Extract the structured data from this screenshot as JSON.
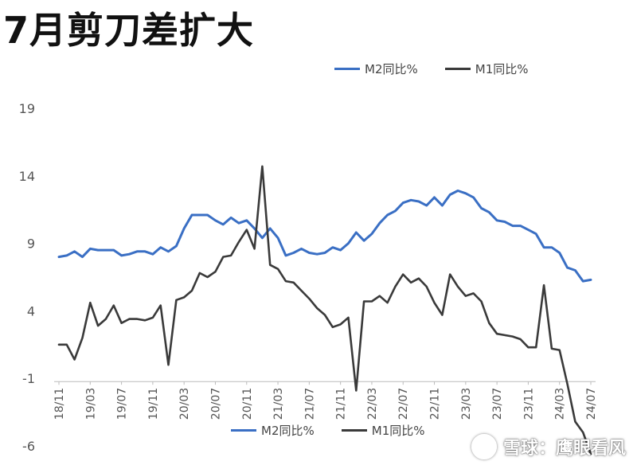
{
  "title": "7月剪刀差扩大",
  "brand_watermark": "雪球：鹰眼看风",
  "chart_data": {
    "type": "line",
    "title": "7月剪刀差扩大",
    "xlabel": "",
    "ylabel": "",
    "ylim": [
      -6,
      19
    ],
    "yticks": [
      19,
      14,
      9,
      4,
      -1,
      -6
    ],
    "xticks": [
      "18/11",
      "19/03",
      "19/07",
      "19/11",
      "20/03",
      "20/07",
      "20/11",
      "21/03",
      "21/07",
      "21/11",
      "22/03",
      "22/07",
      "22/11",
      "23/03",
      "23/07",
      "23/11",
      "24/03",
      "24/07"
    ],
    "x": [
      "18/11",
      "18/12",
      "19/01",
      "19/02",
      "19/03",
      "19/04",
      "19/05",
      "19/06",
      "19/07",
      "19/08",
      "19/09",
      "19/10",
      "19/11",
      "19/12",
      "20/01",
      "20/02",
      "20/03",
      "20/04",
      "20/05",
      "20/06",
      "20/07",
      "20/08",
      "20/09",
      "20/10",
      "20/11",
      "20/12",
      "21/01",
      "21/02",
      "21/03",
      "21/04",
      "21/05",
      "21/06",
      "21/07",
      "21/08",
      "21/09",
      "21/10",
      "21/11",
      "21/12",
      "22/01",
      "22/02",
      "22/03",
      "22/04",
      "22/05",
      "22/06",
      "22/07",
      "22/08",
      "22/09",
      "22/10",
      "22/11",
      "22/12",
      "23/01",
      "23/02",
      "23/03",
      "23/04",
      "23/05",
      "23/06",
      "23/07",
      "23/08",
      "23/09",
      "23/10",
      "23/11",
      "23/12",
      "24/01",
      "24/02",
      "24/03",
      "24/04",
      "24/05",
      "24/06",
      "24/07"
    ],
    "series": [
      {
        "name": "M2同比%",
        "color": "#3a6fc4",
        "values": [
          8.0,
          8.1,
          8.4,
          8.0,
          8.6,
          8.5,
          8.5,
          8.5,
          8.1,
          8.2,
          8.4,
          8.4,
          8.2,
          8.7,
          8.4,
          8.8,
          10.1,
          11.1,
          11.1,
          11.1,
          10.7,
          10.4,
          10.9,
          10.5,
          10.7,
          10.1,
          9.4,
          10.1,
          9.4,
          8.1,
          8.3,
          8.6,
          8.3,
          8.2,
          8.3,
          8.7,
          8.5,
          9.0,
          9.8,
          9.2,
          9.7,
          10.5,
          11.1,
          11.4,
          12.0,
          12.2,
          12.1,
          11.8,
          12.4,
          11.8,
          12.6,
          12.9,
          12.7,
          12.4,
          11.6,
          11.3,
          10.7,
          10.6,
          10.3,
          10.3,
          10.0,
          9.7,
          8.7,
          8.7,
          8.3,
          7.2,
          7.0,
          6.2,
          6.3
        ]
      },
      {
        "name": "M1同比%",
        "color": "#3a3a3a",
        "values": [
          1.5,
          1.5,
          0.4,
          2.0,
          4.6,
          2.9,
          3.4,
          4.4,
          3.1,
          3.4,
          3.4,
          3.3,
          3.5,
          4.4,
          0.0,
          4.8,
          5.0,
          5.5,
          6.8,
          6.5,
          6.9,
          8.0,
          8.1,
          9.1,
          10.0,
          8.6,
          14.7,
          7.4,
          7.1,
          6.2,
          6.1,
          5.5,
          4.9,
          4.2,
          3.7,
          2.8,
          3.0,
          3.5,
          -1.9,
          4.7,
          4.7,
          5.1,
          4.6,
          5.8,
          6.7,
          6.1,
          6.4,
          5.8,
          4.6,
          3.7,
          6.7,
          5.8,
          5.1,
          5.3,
          4.7,
          3.1,
          2.3,
          2.2,
          2.1,
          1.9,
          1.3,
          1.3,
          5.9,
          1.2,
          1.1,
          -1.4,
          -4.2,
          -5.0,
          -6.6
        ]
      }
    ],
    "legend": "top-right, repeated at bottom",
    "grid": false
  }
}
